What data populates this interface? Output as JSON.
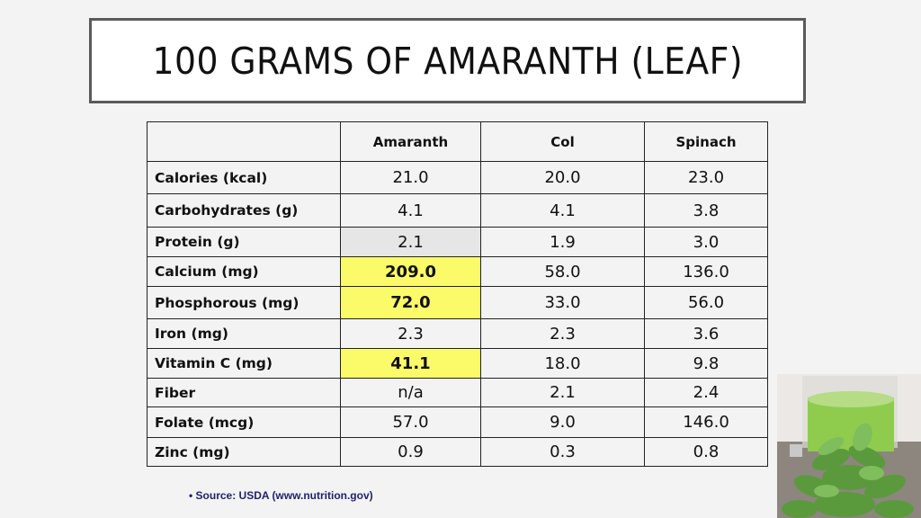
{
  "slide": {
    "title": "100 GRAMS OF AMARANTH (LEAF)",
    "source_note": "• Source: USDA (www.nutrition.gov)",
    "image_description": "green-juice-with-amaranth-leaves"
  },
  "table": {
    "headers": [
      "",
      "Amaranth",
      "Col",
      "Spinach"
    ],
    "rows": [
      {
        "label": "Calories (kcal)",
        "values": [
          "21.0",
          "20.0",
          "23.0"
        ],
        "highlight": [
          false,
          false,
          false
        ]
      },
      {
        "label": "Carbohydrates (g)",
        "values": [
          "4.1",
          "4.1",
          "3.8"
        ],
        "highlight": [
          false,
          false,
          false
        ]
      },
      {
        "label": "Protein (g)",
        "values": [
          "2.1",
          "1.9",
          "3.0"
        ],
        "highlight": [
          false,
          false,
          false
        ]
      },
      {
        "label": "Calcium (mg)",
        "values": [
          "209.0",
          "58.0",
          "136.0"
        ],
        "highlight": [
          true,
          false,
          false
        ]
      },
      {
        "label": "Phosphorous (mg)",
        "values": [
          "72.0",
          "33.0",
          "56.0"
        ],
        "highlight": [
          true,
          false,
          false
        ]
      },
      {
        "label": "Iron (mg)",
        "values": [
          "2.3",
          "2.3",
          "3.6"
        ],
        "highlight": [
          false,
          false,
          false
        ]
      },
      {
        "label": "Vitamin C (mg)",
        "values": [
          "41.1",
          "18.0",
          "9.8"
        ],
        "highlight": [
          true,
          false,
          false
        ]
      },
      {
        "label": "Fiber",
        "values": [
          "n/a",
          "2.1",
          "2.4"
        ],
        "highlight": [
          false,
          false,
          false
        ]
      },
      {
        "label": "Folate (mcg)",
        "values": [
          "57.0",
          "9.0",
          "146.0"
        ],
        "highlight": [
          false,
          false,
          false
        ]
      },
      {
        "label": "Zinc (mg)",
        "values": [
          "0.9",
          "0.3",
          "0.8"
        ],
        "highlight": [
          false,
          false,
          false
        ]
      }
    ]
  },
  "colors": {
    "highlight": "#fbfb6a",
    "source_text": "#1f1f6e",
    "background": "#f3f3f3"
  }
}
